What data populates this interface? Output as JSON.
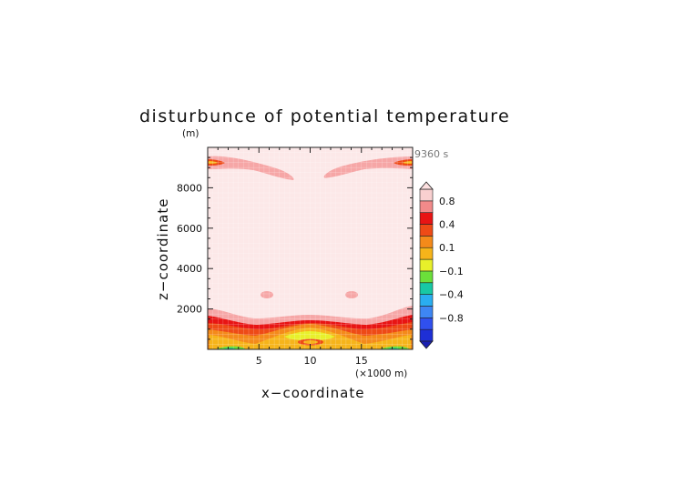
{
  "chart_data": {
    "type": "heatmap",
    "title": "disturbunce of potential temperature",
    "y_unit_label": "(m)",
    "x_unit_label": "(×1000 m)",
    "time_label": "9360 s",
    "xlabel": "x−coordinate",
    "ylabel": "z−coordinate",
    "xlim": [
      0,
      20
    ],
    "ylim": [
      0,
      10000
    ],
    "x_ticks": [
      {
        "value": 5,
        "label": "5"
      },
      {
        "value": 10,
        "label": "10"
      },
      {
        "value": 15,
        "label": "15"
      }
    ],
    "y_ticks": [
      {
        "value": 2000,
        "label": "2000"
      },
      {
        "value": 4000,
        "label": "4000"
      },
      {
        "value": 6000,
        "label": "6000"
      },
      {
        "value": 8000,
        "label": "8000"
      }
    ],
    "colorbar": {
      "levels": [
        {
          "value": -1.0,
          "color": "#1e2fd6"
        },
        {
          "value": -0.8,
          "color": "#3050ee"
        },
        {
          "value": -0.6,
          "color": "#3e86f3"
        },
        {
          "value": -0.4,
          "color": "#2aaef0"
        },
        {
          "value": -0.2,
          "color": "#18c8a4"
        },
        {
          "value": -0.1,
          "color": "#6bdf3a"
        },
        {
          "value": 0.0,
          "color": "#e8f02a"
        },
        {
          "value": 0.1,
          "color": "#f6b41a"
        },
        {
          "value": 0.2,
          "color": "#f48a1a"
        },
        {
          "value": 0.4,
          "color": "#ee4a16"
        },
        {
          "value": 0.6,
          "color": "#e81414"
        },
        {
          "value": 0.8,
          "color": "#f28a8a"
        },
        {
          "value": 1.0,
          "color": "#f9d0d0"
        }
      ],
      "tick_labels": [
        "0.8",
        "0.4",
        "0.1",
        "−0.1",
        "−0.4",
        "−0.8"
      ]
    },
    "field_description_colors": {
      "background": "#fce8e8",
      "light_red": "#f6a6a6",
      "red": "#e81414",
      "orange_red": "#ee4a16",
      "orange": "#f48a1a",
      "yellow_orange": "#f6b41a",
      "yellow": "#e8f02a",
      "green": "#6bdf3a",
      "cyan": "#18c8a4"
    }
  }
}
